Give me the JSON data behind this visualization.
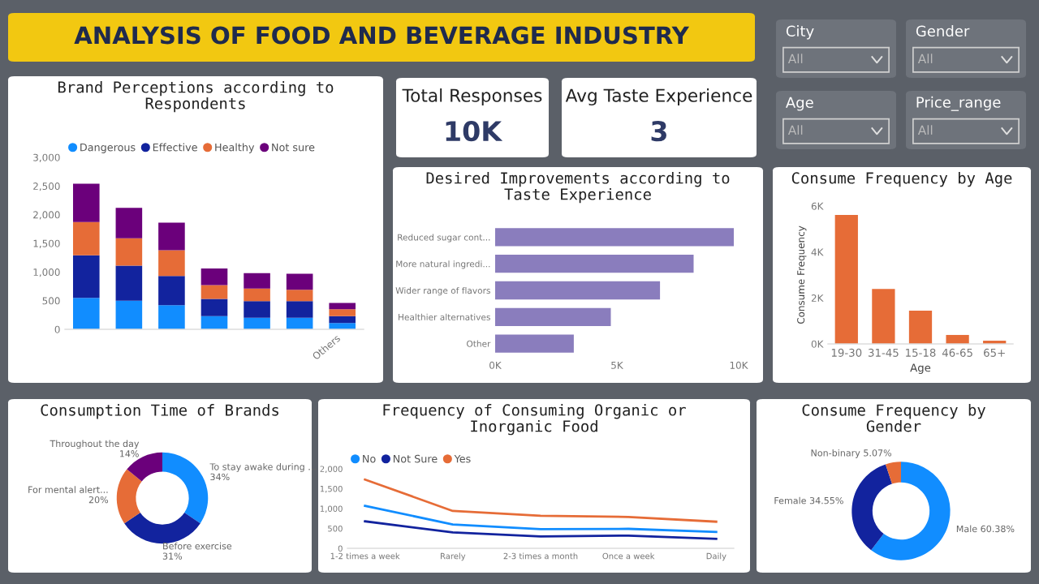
{
  "chart_data": [
    {
      "type": "other",
      "title": "ANALYSIS OF FOOD AND BEVERAGE INDUSTRY"
    },
    {
      "type": "other",
      "title": "City",
      "annotations": [
        "All"
      ]
    },
    {
      "type": "other",
      "title": "Gender",
      "annotations": [
        "All"
      ]
    },
    {
      "type": "other",
      "title": "Age",
      "annotations": [
        "All"
      ]
    },
    {
      "type": "other",
      "title": "Price_range",
      "annotations": [
        "All"
      ]
    },
    {
      "type": "bar",
      "title": "Brand Perceptions according to Respondents",
      "stacked": true,
      "legend": "top left",
      "categories": [
        null,
        null,
        null,
        null,
        null,
        null,
        "Others"
      ],
      "series": [
        {
          "name": "Dangerous",
          "color": "#118dff",
          "values": [
            550,
            500,
            420,
            230,
            200,
            200,
            110
          ]
        },
        {
          "name": "Effective",
          "color": "#12239e",
          "values": [
            740,
            610,
            510,
            300,
            290,
            290,
            120
          ]
        },
        {
          "name": "Healthy",
          "color": "#e66c37",
          "values": [
            580,
            480,
            450,
            240,
            220,
            200,
            120
          ]
        },
        {
          "name": "Not sure",
          "color": "#6b007b",
          "values": [
            670,
            530,
            480,
            290,
            270,
            280,
            110
          ]
        }
      ],
      "ylim": [
        0,
        3000
      ],
      "yticks": [
        0,
        500,
        {
          "value": 1000,
          "label": "1,000"
        },
        {
          "value": 1500,
          "label": "1,500"
        },
        {
          "value": 2000,
          "label": "2,000"
        },
        {
          "value": 2500,
          "label": "2,500"
        },
        {
          "value": 3000,
          "label": "3,000"
        }
      ]
    },
    {
      "type": "other",
      "title": "Total Responses",
      "annotations": [
        "10K"
      ]
    },
    {
      "type": "other",
      "title": "Avg Taste Experience",
      "annotations": [
        "3"
      ]
    },
    {
      "type": "bar",
      "orientation": "horizontal",
      "title": "Desired Improvements according to Taste Experience",
      "categories": [
        "Reduced sugar cont...",
        "More natural ingredi...",
        "Wider range of flavors",
        "Healthier alternatives",
        "Other"
      ],
      "values": [
        9800,
        8150,
        6770,
        4750,
        3230
      ],
      "color": "#8a7dbd",
      "xlim": [
        0,
        10000
      ],
      "xticks": [
        {
          "value": 0,
          "label": "0K"
        },
        {
          "value": 5000,
          "label": "5K"
        },
        {
          "value": 10000,
          "label": "10K"
        }
      ]
    },
    {
      "type": "bar",
      "title": "Consume Frequency by Age",
      "xlabel": "Age",
      "ylabel": "Consume Frequency",
      "categories": [
        "19-30",
        "31-45",
        "15-18",
        "46-65",
        "65+"
      ],
      "values": [
        5610,
        2390,
        1450,
        390,
        140
      ],
      "color": "#e66c37",
      "ylim": [
        0,
        6000
      ],
      "yticks": [
        {
          "value": 0,
          "label": "0K"
        },
        {
          "value": 2000,
          "label": "2K"
        },
        {
          "value": 4000,
          "label": "4K"
        },
        {
          "value": 6000,
          "label": "6K"
        }
      ]
    },
    {
      "type": "donut",
      "title": "Consumption Time of Brands",
      "categories": [
        "To stay awake during ...",
        "Before exercise",
        "For mental alert...",
        "Throughout the day"
      ],
      "values": [
        34,
        31,
        20,
        14
      ],
      "value_labels": [
        "34%",
        "31%",
        "20%",
        "14%"
      ],
      "colors": [
        "#118dff",
        "#12239e",
        "#e66c37",
        "#6b007b"
      ]
    },
    {
      "type": "line",
      "title": "Frequency of Consuming Organic or Inorganic Food",
      "legend": "top left",
      "categories": [
        "1-2 times a week",
        "Rarely",
        "2-3 times a month",
        "Once a week",
        "Daily"
      ],
      "series": [
        {
          "name": "No",
          "color": "#118dff",
          "values": [
            1070,
            600,
            480,
            490,
            410
          ]
        },
        {
          "name": "Not Sure",
          "color": "#12239e",
          "values": [
            680,
            400,
            300,
            320,
            240
          ]
        },
        {
          "name": "Yes",
          "color": "#e66c37",
          "values": [
            1730,
            940,
            820,
            790,
            670
          ]
        }
      ],
      "ylim": [
        0,
        2000
      ],
      "yticks": [
        0,
        500,
        {
          "value": 1000,
          "label": "1,000"
        },
        {
          "value": 1500,
          "label": "1,500"
        },
        {
          "value": 2000,
          "label": "2,000"
        }
      ]
    },
    {
      "type": "donut",
      "title": "Consume Frequency by Gender",
      "categories": [
        "Male",
        "Female",
        "Non-binary"
      ],
      "values": [
        60.38,
        34.55,
        5.07
      ],
      "value_labels": [
        "60.38%",
        "34.55%",
        "5.07%"
      ],
      "colors": [
        "#118dff",
        "#12239e",
        "#e66c37"
      ]
    }
  ]
}
